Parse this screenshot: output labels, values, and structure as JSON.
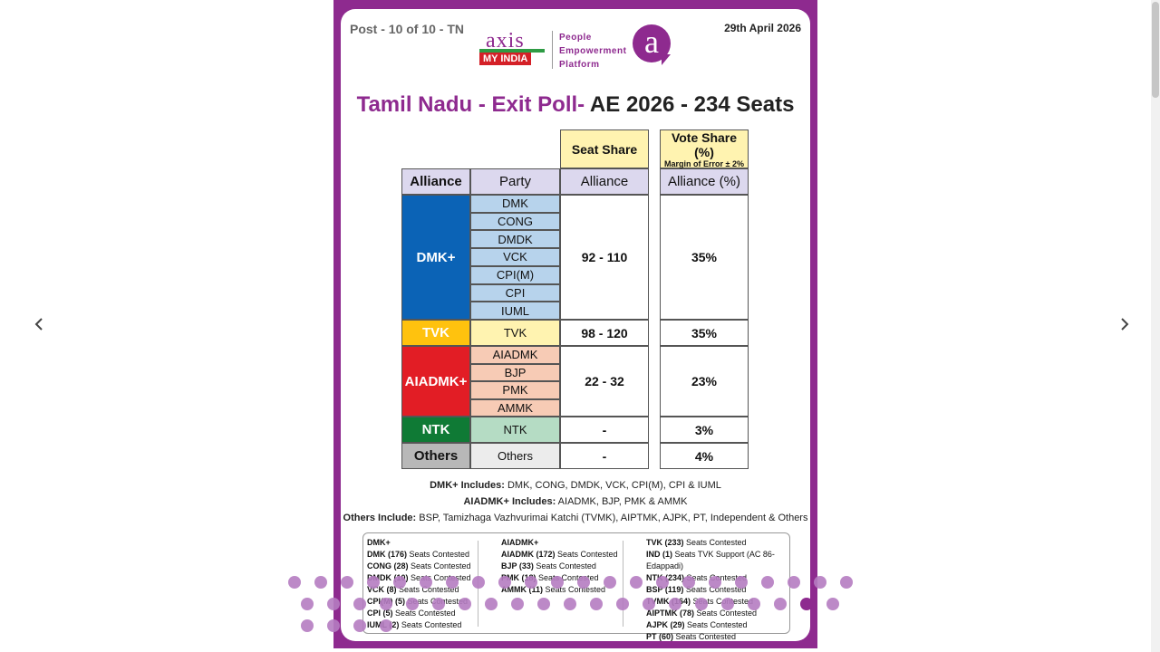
{
  "slide": {
    "post_label": "Post - 10 of 10 - TN",
    "date": "29th April 2026",
    "logo": {
      "axis": "axis",
      "myindia": "MY INDIA",
      "tagline": [
        "People",
        "Empowerment",
        "Platform"
      ],
      "a_letter": "a"
    },
    "title_part1": "Tamil Nadu - Exit Poll-",
    "title_part2": " AE 2026 - 234 Seats",
    "table": {
      "seat_share_header": "Seat Share",
      "vote_share_header": "Vote Share (%)",
      "vote_share_sub": "Margin of Error ± 2%",
      "col_alliance": "Alliance",
      "col_party": "Party",
      "col_seat_alliance": "Alliance",
      "col_vote_alliance": "Alliance (%)",
      "rows": [
        {
          "alliance": "DMK+",
          "parties": [
            "DMK",
            "CONG",
            "DMDK",
            "VCK",
            "CPI(M)",
            "CPI",
            "IUML"
          ],
          "seats": "92 - 110",
          "vote": "35%",
          "alliance_color": "#0b63b6",
          "party_color": "#b7d3ec"
        },
        {
          "alliance": "TVK",
          "parties": [
            "TVK"
          ],
          "seats": "98 - 120",
          "vote": "35%",
          "alliance_color": "#ffc20e",
          "party_color": "#fff3b0"
        },
        {
          "alliance": "AIADMK+",
          "parties": [
            "AIADMK",
            "BJP",
            "PMK",
            "AMMK"
          ],
          "seats": "22 - 32",
          "vote": "23%",
          "alliance_color": "#e21d25",
          "party_color": "#f7cbb5"
        },
        {
          "alliance": "NTK",
          "parties": [
            "NTK"
          ],
          "seats": "-",
          "vote": "3%",
          "alliance_color": "#0f7a35",
          "party_color": "#b5dcc4"
        },
        {
          "alliance": "Others",
          "parties": [
            "Others"
          ],
          "seats": "-",
          "vote": "4%",
          "alliance_color": "#b8b8b8",
          "party_color": "#ececec"
        }
      ]
    },
    "includes": [
      {
        "label": "DMK+ Includes:",
        "text": " DMK, CONG, DMDK, VCK, CPI(M), CPI & IUML"
      },
      {
        "label": "AIADMK+ Includes:",
        "text": " AIADMK, BJP, PMK & AMMK"
      },
      {
        "label": "Others Include:",
        "text": " BSP, Tamizhaga Vazhvurimai Katchi (TVMK), AIPTMK, AJPK, PT, Independent & Others"
      }
    ],
    "contested": {
      "col1": [
        {
          "b": "DMK+",
          "t": ""
        },
        {
          "b": "DMK (176)",
          "t": " Seats Contested"
        },
        {
          "b": "CONG (28)",
          "t": " Seats Contested"
        },
        {
          "b": "DMDK (10)",
          "t": " Seats Contested"
        },
        {
          "b": "VCK (8)",
          "t": " Seats Contested"
        },
        {
          "b": "CPI(M) (5)",
          "t": " Seats Contested"
        },
        {
          "b": "CPI (5)",
          "t": " Seats Contested"
        },
        {
          "b": "IUML (2)",
          "t": " Seats Contested"
        }
      ],
      "col2": [
        {
          "b": "AIADMK+",
          "t": ""
        },
        {
          "b": "AIADMK (172)",
          "t": " Seats Contested"
        },
        {
          "b": "BJP (33)",
          "t": " Seats Contested"
        },
        {
          "b": "PMK (18)",
          "t": " Seats Contested"
        },
        {
          "b": "AMMK (11)",
          "t": " Seats Contested"
        }
      ],
      "col3": [
        {
          "b": "TVK (233)",
          "t": " Seats Contested"
        },
        {
          "b": "IND (1)",
          "t": " Seats TVK Support (AC 86-Edappadi)"
        },
        {
          "b": "NTK (234)",
          "t": " Seats Contested"
        },
        {
          "b": "BSP (119)",
          "t": " Seats Contested"
        },
        {
          "b": "TVMK (164)",
          "t": " Seats Contested"
        },
        {
          "b": "AIPTMK (78)",
          "t": " Seats Contested"
        },
        {
          "b": "AJPK (29)",
          "t": " Seats Contested"
        },
        {
          "b": "PT (60)",
          "t": " Seats Contested"
        }
      ]
    }
  },
  "carousel": {
    "prev_icon": "chevron-left-icon",
    "next_icon": "chevron-right-icon",
    "dot_count": 59,
    "active_dot": 54
  }
}
